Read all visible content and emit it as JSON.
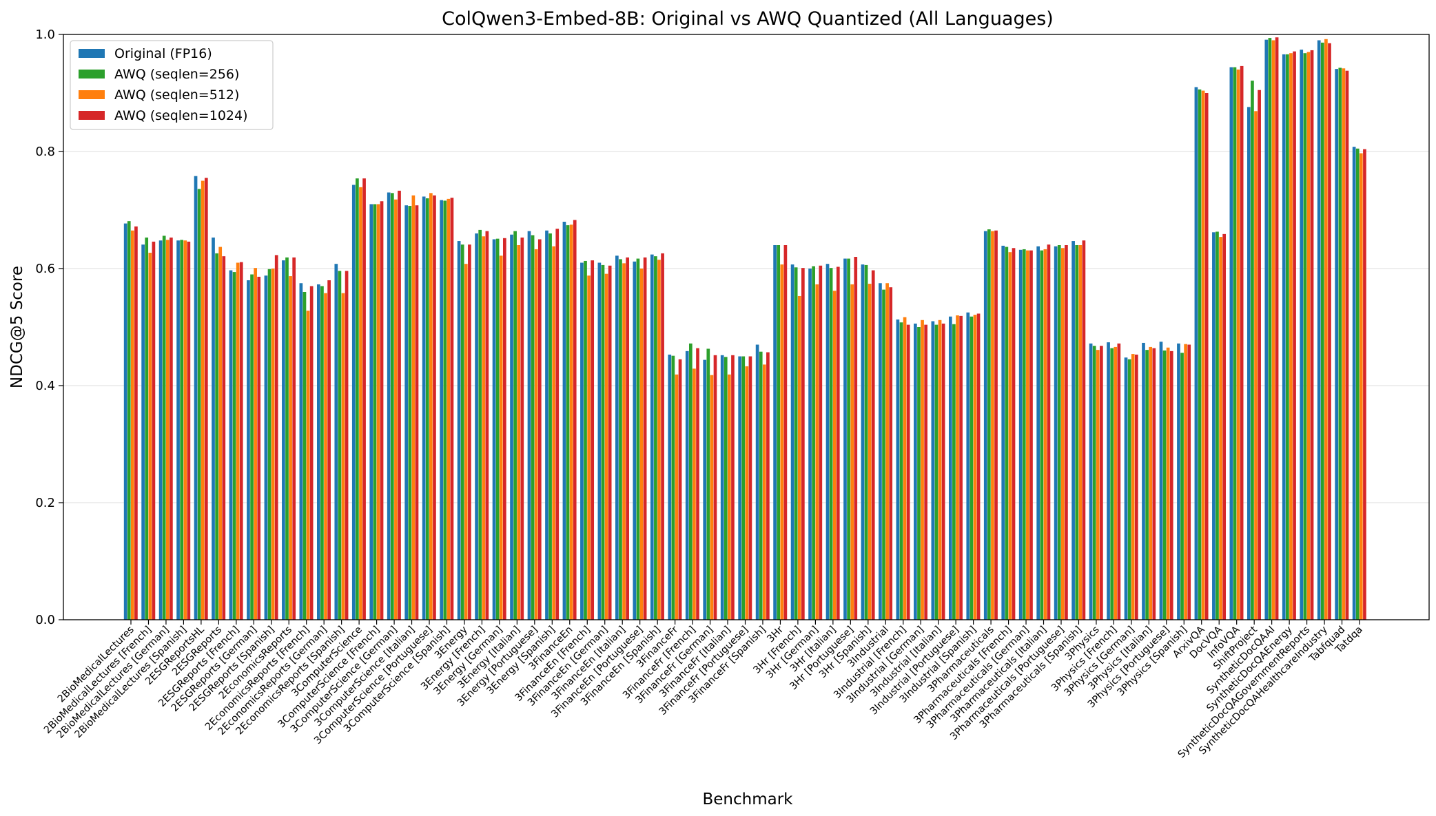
{
  "chart_data": {
    "type": "bar",
    "title": "ColQwen3-Embed-8B: Original vs AWQ Quantized (All Languages)",
    "xlabel": "Benchmark",
    "ylabel": "NDCG@5 Score",
    "ylim": [
      0,
      1.0
    ],
    "yticks": [
      "0.0",
      "0.2",
      "0.4",
      "0.6",
      "0.8",
      "1.0"
    ],
    "grid": "horizontal",
    "legend_position": "top-left",
    "categories": [
      "2BioMedicalLectures",
      "2BioMedicalLectures [French]",
      "2BioMedicalLectures [German]",
      "2BioMedicalLectures [Spanish]",
      "2ESGReportsHL",
      "2ESGReports",
      "2ESGReports [French]",
      "2ESGReports [German]",
      "2ESGReports [Spanish]",
      "2EconomicsReports",
      "2EconomicsReports [French]",
      "2EconomicsReports [German]",
      "2EconomicsReports [Spanish]",
      "3ComputerScience",
      "3ComputerScience [French]",
      "3ComputerScience [German]",
      "3ComputerScience [Italian]",
      "3ComputerScience [Portuguese]",
      "3ComputerScience [Spanish]",
      "3Energy",
      "3Energy [French]",
      "3Energy [German]",
      "3Energy [Italian]",
      "3Energy [Portuguese]",
      "3Energy [Spanish]",
      "3FinanceEn",
      "3FinanceEn [French]",
      "3FinanceEn [German]",
      "3FinanceEn [Italian]",
      "3FinanceEn [Portuguese]",
      "3FinanceEn [Spanish]",
      "3FinanceFr",
      "3FinanceFr [French]",
      "3FinanceFr [German]",
      "3FinanceFr [Italian]",
      "3FinanceFr [Portuguese]",
      "3FinanceFr [Spanish]",
      "3Hr",
      "3Hr [French]",
      "3Hr [German]",
      "3Hr [Italian]",
      "3Hr [Portuguese]",
      "3Hr [Spanish]",
      "3Industrial",
      "3Industrial [French]",
      "3Industrial [German]",
      "3Industrial [Italian]",
      "3Industrial [Portuguese]",
      "3Industrial [Spanish]",
      "3Pharmaceuticals",
      "3Pharmaceuticals [French]",
      "3Pharmaceuticals [German]",
      "3Pharmaceuticals [Italian]",
      "3Pharmaceuticals [Portuguese]",
      "3Pharmaceuticals [Spanish]",
      "3Physics",
      "3Physics [French]",
      "3Physics [German]",
      "3Physics [Italian]",
      "3Physics [Portuguese]",
      "3Physics [Spanish]",
      "ArxivQA",
      "DocVQA",
      "InfoVQA",
      "ShiftProject",
      "SyntheticDocQAAI",
      "SyntheticDocQAEnergy",
      "SyntheticDocQAGovernmentReports",
      "SyntheticDocQAHealthcareIndustry",
      "Tabfquad",
      "Tatdqa"
    ],
    "series": [
      {
        "name": "Original (FP16)",
        "color": "#1f77b4",
        "values": [
          0.677,
          0.641,
          0.648,
          0.648,
          0.758,
          0.653,
          0.597,
          0.58,
          0.588,
          0.614,
          0.575,
          0.573,
          0.608,
          0.743,
          0.71,
          0.73,
          0.708,
          0.723,
          0.717,
          0.647,
          0.66,
          0.65,
          0.658,
          0.664,
          0.665,
          0.68,
          0.61,
          0.61,
          0.622,
          0.612,
          0.624,
          0.453,
          0.459,
          0.444,
          0.452,
          0.45,
          0.47,
          0.64,
          0.607,
          0.6,
          0.608,
          0.617,
          0.607,
          0.575,
          0.513,
          0.506,
          0.51,
          0.518,
          0.525,
          0.664,
          0.639,
          0.632,
          0.638,
          0.638,
          0.647,
          0.472,
          0.474,
          0.448,
          0.473,
          0.475,
          0.472,
          0.91,
          0.662,
          0.944,
          0.876,
          0.991,
          0.966,
          0.974,
          0.99,
          0.941,
          0.808
        ]
      },
      {
        "name": "AWQ (seqlen=256)",
        "color": "#2ca02c",
        "values": [
          0.681,
          0.653,
          0.656,
          0.649,
          0.736,
          0.626,
          0.594,
          0.59,
          0.599,
          0.619,
          0.56,
          0.57,
          0.596,
          0.754,
          0.71,
          0.729,
          0.707,
          0.72,
          0.716,
          0.641,
          0.666,
          0.651,
          0.664,
          0.657,
          0.66,
          0.674,
          0.613,
          0.606,
          0.616,
          0.617,
          0.621,
          0.451,
          0.472,
          0.463,
          0.449,
          0.45,
          0.458,
          0.64,
          0.602,
          0.604,
          0.601,
          0.617,
          0.606,
          0.564,
          0.508,
          0.5,
          0.504,
          0.505,
          0.518,
          0.667,
          0.637,
          0.633,
          0.631,
          0.64,
          0.64,
          0.468,
          0.464,
          0.445,
          0.461,
          0.46,
          0.456,
          0.906,
          0.663,
          0.944,
          0.921,
          0.994,
          0.966,
          0.968,
          0.986,
          0.943,
          0.805
        ]
      },
      {
        "name": "AWQ (seqlen=512)",
        "color": "#ff7f0e",
        "values": [
          0.665,
          0.627,
          0.649,
          0.648,
          0.75,
          0.637,
          0.61,
          0.601,
          0.6,
          0.587,
          0.528,
          0.558,
          0.558,
          0.739,
          0.71,
          0.718,
          0.725,
          0.729,
          0.719,
          0.608,
          0.655,
          0.622,
          0.64,
          0.633,
          0.638,
          0.675,
          0.588,
          0.591,
          0.609,
          0.6,
          0.615,
          0.419,
          0.429,
          0.418,
          0.419,
          0.433,
          0.436,
          0.607,
          0.553,
          0.573,
          0.562,
          0.573,
          0.574,
          0.575,
          0.517,
          0.512,
          0.512,
          0.52,
          0.521,
          0.664,
          0.628,
          0.631,
          0.633,
          0.635,
          0.64,
          0.461,
          0.466,
          0.454,
          0.466,
          0.465,
          0.471,
          0.904,
          0.654,
          0.94,
          0.869,
          0.99,
          0.968,
          0.97,
          0.992,
          0.942,
          0.797
        ]
      },
      {
        "name": "AWQ (seqlen=1024)",
        "color": "#d62728",
        "values": [
          0.672,
          0.646,
          0.653,
          0.646,
          0.755,
          0.621,
          0.611,
          0.586,
          0.623,
          0.619,
          0.57,
          0.58,
          0.596,
          0.754,
          0.715,
          0.733,
          0.708,
          0.725,
          0.721,
          0.641,
          0.664,
          0.652,
          0.653,
          0.65,
          0.668,
          0.683,
          0.614,
          0.605,
          0.619,
          0.619,
          0.626,
          0.445,
          0.464,
          0.452,
          0.452,
          0.45,
          0.457,
          0.64,
          0.601,
          0.605,
          0.603,
          0.62,
          0.597,
          0.568,
          0.504,
          0.504,
          0.506,
          0.519,
          0.523,
          0.665,
          0.635,
          0.631,
          0.641,
          0.64,
          0.648,
          0.468,
          0.472,
          0.453,
          0.464,
          0.459,
          0.47,
          0.9,
          0.659,
          0.946,
          0.905,
          0.995,
          0.971,
          0.973,
          0.985,
          0.938,
          0.804
        ]
      }
    ]
  }
}
